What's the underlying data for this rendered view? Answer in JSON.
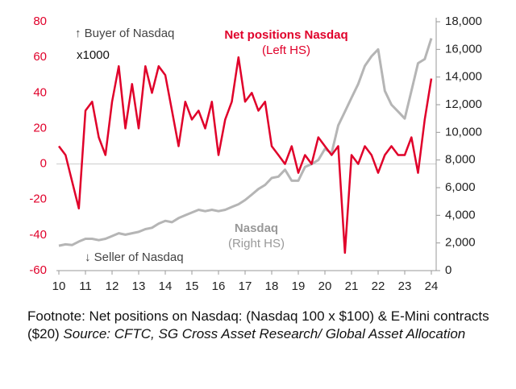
{
  "chart_data": {
    "type": "line",
    "annotations": [
      "↑ Buyer of Nasdaq",
      "x1000",
      "(Left HS)",
      "(Right HS)",
      "↓ Seller of Nasdaq"
    ],
    "footnote": "Footnote: Net positions on Nasdaq: (Nasdaq 100 x $100) & E-Mini contracts ($20)",
    "source": "Source: CFTC, SG Cross Asset Research/ Global Asset Allocation",
    "x": [
      2010,
      2010.25,
      2010.5,
      2010.75,
      2011,
      2011.25,
      2011.5,
      2011.75,
      2012,
      2012.25,
      2012.5,
      2012.75,
      2013,
      2013.25,
      2013.5,
      2013.75,
      2014,
      2014.25,
      2014.5,
      2014.75,
      2015,
      2015.25,
      2015.5,
      2015.75,
      2016,
      2016.25,
      2016.5,
      2016.75,
      2017,
      2017.25,
      2017.5,
      2017.75,
      2018,
      2018.25,
      2018.5,
      2018.75,
      2019,
      2019.25,
      2019.5,
      2019.75,
      2020,
      2020.25,
      2020.5,
      2020.75,
      2021,
      2021.25,
      2021.5,
      2021.75,
      2022,
      2022.25,
      2022.5,
      2022.75,
      2023,
      2023.25,
      2023.5,
      2023.75,
      2024
    ],
    "series": [
      {
        "name": "Net positions Nasdaq",
        "color": "#e0002a",
        "axis": "y",
        "values": [
          10,
          5,
          -10,
          -25,
          30,
          35,
          15,
          5,
          35,
          55,
          20,
          45,
          20,
          55,
          40,
          55,
          50,
          30,
          10,
          35,
          25,
          30,
          20,
          35,
          5,
          25,
          35,
          60,
          35,
          40,
          30,
          35,
          10,
          5,
          0,
          10,
          -5,
          5,
          0,
          15,
          10,
          5,
          10,
          -50,
          5,
          0,
          10,
          5,
          -5,
          5,
          10,
          5,
          5,
          15,
          -5,
          25,
          48
        ]
      },
      {
        "name": "Nasdaq",
        "color": "#b5b5b5",
        "axis": "y2",
        "values": [
          1800,
          1900,
          1850,
          2100,
          2300,
          2300,
          2200,
          2300,
          2500,
          2700,
          2600,
          2700,
          2800,
          3000,
          3100,
          3400,
          3600,
          3500,
          3800,
          4000,
          4200,
          4400,
          4300,
          4400,
          4300,
          4400,
          4600,
          4800,
          5100,
          5500,
          5900,
          6200,
          6700,
          6800,
          7300,
          6500,
          6500,
          7500,
          7700,
          8000,
          8800,
          8500,
          10500,
          11500,
          12500,
          13500,
          14800,
          15500,
          16000,
          13000,
          12000,
          11500,
          11000,
          13000,
          15000,
          15300,
          16800
        ]
      }
    ],
    "xlim": [
      2010,
      2024
    ],
    "xticks": [
      {
        "value": 2010,
        "label": "10"
      },
      {
        "value": 2011,
        "label": "11"
      },
      {
        "value": 2012,
        "label": "12"
      },
      {
        "value": 2013,
        "label": "13"
      },
      {
        "value": 2014,
        "label": "14"
      },
      {
        "value": 2015,
        "label": "15"
      },
      {
        "value": 2016,
        "label": "16"
      },
      {
        "value": 2017,
        "label": "17"
      },
      {
        "value": 2018,
        "label": "18"
      },
      {
        "value": 2019,
        "label": "19"
      },
      {
        "value": 2020,
        "label": "20"
      },
      {
        "value": 2021,
        "label": "21"
      },
      {
        "value": 2022,
        "label": "22"
      },
      {
        "value": 2023,
        "label": "23"
      },
      {
        "value": 2024,
        "label": "24"
      }
    ],
    "ylim": [
      -60,
      80
    ],
    "yticks": [
      -60,
      -40,
      -20,
      0,
      20,
      40,
      60,
      80
    ],
    "y2lim": [
      0,
      18000
    ],
    "y2ticks": [
      0,
      {
        "value": 2000,
        "label": "2,000"
      },
      {
        "value": 4000,
        "label": "4,000"
      },
      {
        "value": 6000,
        "label": "6,000"
      },
      {
        "value": 8000,
        "label": "8,000"
      },
      {
        "value": 10000,
        "label": "10,000"
      },
      {
        "value": 12000,
        "label": "12,000"
      },
      {
        "value": 14000,
        "label": "14,000"
      },
      {
        "value": 16000,
        "label": "16,000"
      },
      {
        "value": 18000,
        "label": "18,000"
      }
    ],
    "grid": false
  }
}
